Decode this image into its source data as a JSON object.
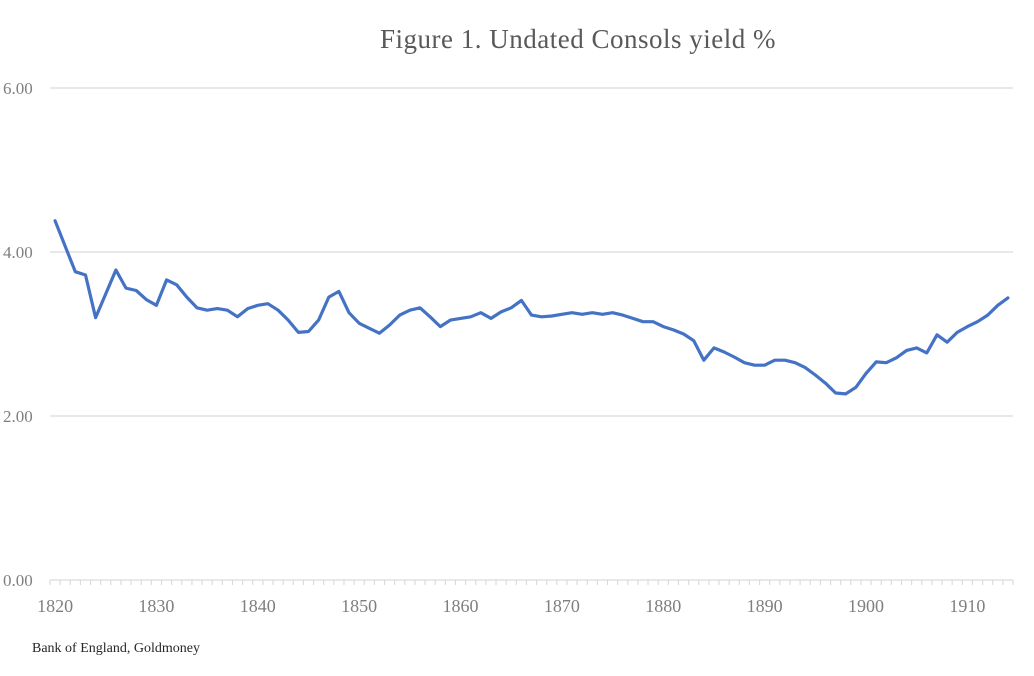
{
  "chart_data": {
    "type": "line",
    "title": "Figure 1. Undated Consols yield %",
    "source": "Bank of England, Goldmoney",
    "xlabel": "",
    "ylabel": "",
    "ylim": [
      0,
      6
    ],
    "y_ticks": [
      {
        "value": 0,
        "label": "0.00"
      },
      {
        "value": 2,
        "label": "2.00"
      },
      {
        "value": 4,
        "label": "4.00"
      },
      {
        "value": 6,
        "label": "6.00"
      }
    ],
    "x_tick_labels": [
      1820,
      1830,
      1840,
      1850,
      1860,
      1870,
      1880,
      1890,
      1900,
      1910
    ],
    "grid": "horizontal",
    "legend_position": "none",
    "line_color": "#4472c4",
    "grid_color": "#d9d9d9",
    "axis_label_color": "#7f7f7f",
    "title_color": "#595959",
    "series": [
      {
        "name": "Undated Consols yield %",
        "x": [
          1820,
          1821,
          1822,
          1823,
          1824,
          1825,
          1826,
          1827,
          1828,
          1829,
          1830,
          1831,
          1832,
          1833,
          1834,
          1835,
          1836,
          1837,
          1838,
          1839,
          1840,
          1841,
          1842,
          1843,
          1844,
          1845,
          1846,
          1847,
          1848,
          1849,
          1850,
          1851,
          1852,
          1853,
          1854,
          1855,
          1856,
          1857,
          1858,
          1859,
          1860,
          1861,
          1862,
          1863,
          1864,
          1865,
          1866,
          1867,
          1868,
          1869,
          1870,
          1871,
          1872,
          1873,
          1874,
          1875,
          1876,
          1877,
          1878,
          1879,
          1880,
          1881,
          1882,
          1883,
          1884,
          1885,
          1886,
          1887,
          1888,
          1889,
          1890,
          1891,
          1892,
          1893,
          1894,
          1895,
          1896,
          1897,
          1898,
          1899,
          1900,
          1901,
          1902,
          1903,
          1904,
          1905,
          1906,
          1907,
          1908,
          1909,
          1910,
          1911,
          1912,
          1913,
          1914
        ],
        "values": [
          4.38,
          4.07,
          3.76,
          3.72,
          3.2,
          3.49,
          3.78,
          3.56,
          3.53,
          3.42,
          3.35,
          3.66,
          3.6,
          3.45,
          3.32,
          3.29,
          3.31,
          3.29,
          3.21,
          3.31,
          3.35,
          3.37,
          3.29,
          3.17,
          3.02,
          3.03,
          3.17,
          3.45,
          3.52,
          3.26,
          3.13,
          3.07,
          3.01,
          3.11,
          3.23,
          3.29,
          3.32,
          3.21,
          3.09,
          3.17,
          3.19,
          3.21,
          3.26,
          3.19,
          3.27,
          3.32,
          3.41,
          3.23,
          3.21,
          3.22,
          3.24,
          3.26,
          3.24,
          3.26,
          3.24,
          3.26,
          3.23,
          3.19,
          3.15,
          3.15,
          3.09,
          3.05,
          3.0,
          2.92,
          2.68,
          2.83,
          2.78,
          2.72,
          2.65,
          2.62,
          2.62,
          2.68,
          2.68,
          2.65,
          2.59,
          2.5,
          2.4,
          2.28,
          2.27,
          2.35,
          2.52,
          2.66,
          2.65,
          2.71,
          2.8,
          2.83,
          2.77,
          2.99,
          2.9,
          3.02,
          3.09,
          3.15,
          3.23,
          3.35,
          3.44
        ]
      }
    ]
  }
}
